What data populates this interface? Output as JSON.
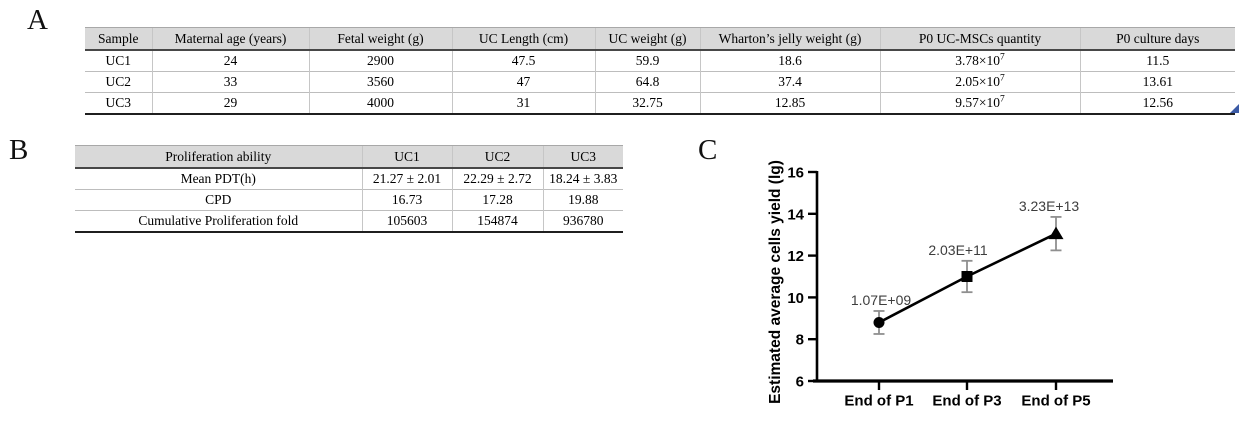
{
  "colors": {
    "table_header_bg": "#d9d9d9",
    "corner_mark": "#3b5aa5",
    "line_color": "#000000",
    "error_bar_color": "#8f8f8f",
    "point_label_color": "#3d3d3d"
  },
  "panel_a": {
    "label": "A",
    "headers": [
      "Sample",
      "Maternal age (years)",
      "Fetal weight (g)",
      "UC Length (cm)",
      "UC weight (g)",
      "Wharton’s jelly weight (g)",
      "P0 UC-MSCs quantity",
      "P0 culture days"
    ],
    "rows": [
      [
        "UC1",
        "24",
        "2900",
        "47.5",
        "59.9",
        "18.6",
        {
          "base": "3.78×10",
          "exp": "7"
        },
        "11.5"
      ],
      [
        "UC2",
        "33",
        "3560",
        "47",
        "64.8",
        "37.4",
        {
          "base": "2.05×10",
          "exp": "7"
        },
        "13.61"
      ],
      [
        "UC3",
        "29",
        "4000",
        "31",
        "32.75",
        "12.85",
        {
          "base": "9.57×10",
          "exp": "7"
        },
        "12.56"
      ]
    ]
  },
  "panel_b": {
    "label": "B",
    "headers": [
      "Proliferation ability",
      "UC1",
      "UC2",
      "UC3"
    ],
    "rows": [
      [
        "Mean PDT(h)",
        "21.27 ± 2.01",
        "22.29 ± 2.72",
        "18.24 ± 3.83"
      ],
      [
        "CPD",
        "16.73",
        "17.28",
        "19.88"
      ],
      [
        "Cumulative Proliferation fold",
        "105603",
        "154874",
        "936780"
      ]
    ]
  },
  "panel_c": {
    "label": "C"
  },
  "chart_data": {
    "type": "line",
    "title": "",
    "categories": [
      "End of P1",
      "End of P3",
      "End of P5"
    ],
    "values": [
      8.8,
      11.0,
      13.05
    ],
    "errors": [
      0.55,
      0.75,
      0.8
    ],
    "point_labels": [
      "1.07E+09",
      "2.03E+11",
      "3.23E+13"
    ],
    "markers": [
      "circle",
      "square",
      "triangle"
    ],
    "ylabel": "Estimated average cells yield (lg)",
    "xlabel": "",
    "ylim": [
      6,
      16
    ],
    "yticks": [
      6,
      8,
      10,
      12,
      14,
      16
    ],
    "grid": false,
    "legend": "none",
    "line_color": "#000000",
    "marker_color": "#000000",
    "error_color": "#8f8f8f",
    "point_label_color": "#3d3d3d"
  }
}
